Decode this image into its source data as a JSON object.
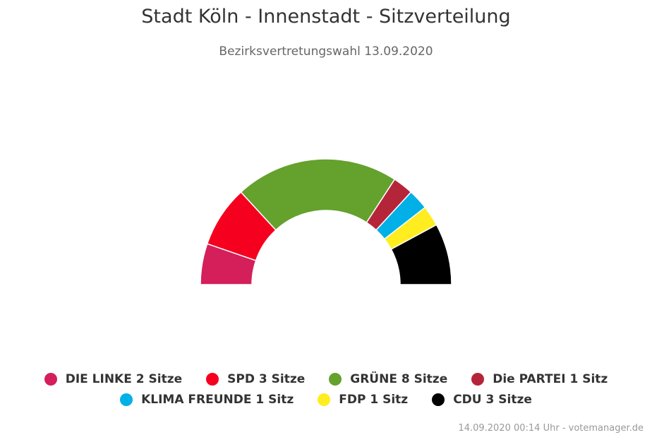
{
  "chart_data": {
    "type": "pie",
    "variant": "parliament-semicircle",
    "title": "Stadt Köln - Innenstadt - Sitzverteilung",
    "subtitle": "Bezirksvertretungswahl 13.09.2020",
    "series": [
      {
        "name": "DIE LINKE",
        "value": 2,
        "legend": "DIE LINKE 2 Sitze",
        "color": "#d41f5b"
      },
      {
        "name": "SPD",
        "value": 3,
        "legend": "SPD 3 Sitze",
        "color": "#f5001e"
      },
      {
        "name": "GRÜNE",
        "value": 8,
        "legend": "GRÜNE 8 Sitze",
        "color": "#64a12d"
      },
      {
        "name": "Die PARTEI",
        "value": 1,
        "legend": "Die PARTEI 1 Sitz",
        "color": "#b5253a"
      },
      {
        "name": "KLIMA FREUNDE",
        "value": 1,
        "legend": "KLIMA FREUNDE 1 Sitz",
        "color": "#00b0e6"
      },
      {
        "name": "FDP",
        "value": 1,
        "legend": "FDP 1 Sitz",
        "color": "#ffed1f"
      },
      {
        "name": "CDU",
        "value": 3,
        "legend": "CDU 3 Sitze",
        "color": "#000000"
      }
    ],
    "legend_placement": "bottom"
  },
  "credits": "14.09.2020 00:14 Uhr - votemanager.de"
}
